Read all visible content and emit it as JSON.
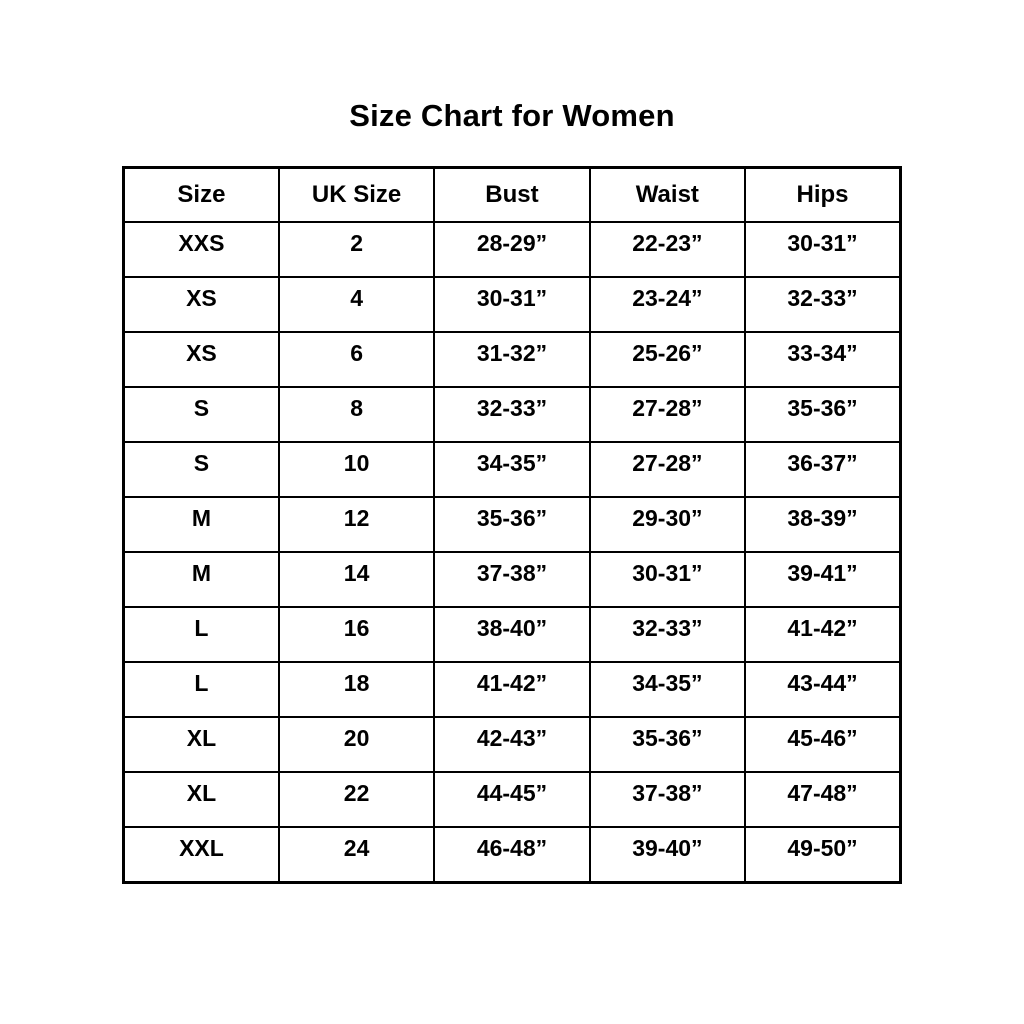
{
  "title": "Size Chart for Women",
  "chart_data": {
    "type": "table",
    "title": "Size Chart for Women",
    "columns": [
      "Size",
      "UK Size",
      "Bust",
      "Waist",
      "Hips"
    ],
    "rows": [
      [
        "XXS",
        "2",
        "28-29”",
        "22-23”",
        "30-31”"
      ],
      [
        "XS",
        "4",
        "30-31”",
        "23-24”",
        "32-33”"
      ],
      [
        "XS",
        "6",
        "31-32”",
        "25-26”",
        "33-34”"
      ],
      [
        "S",
        "8",
        "32-33”",
        "27-28”",
        "35-36”"
      ],
      [
        "S",
        "10",
        "34-35”",
        "27-28”",
        "36-37”"
      ],
      [
        "M",
        "12",
        "35-36”",
        "29-30”",
        "38-39”"
      ],
      [
        "M",
        "14",
        "37-38”",
        "30-31”",
        "39-41”"
      ],
      [
        "L",
        "16",
        "38-40”",
        "32-33”",
        "41-42”"
      ],
      [
        "L",
        "18",
        "41-42”",
        "34-35”",
        "43-44”"
      ],
      [
        "XL",
        "20",
        "42-43”",
        "35-36”",
        "45-46”"
      ],
      [
        "XL",
        "22",
        "44-45”",
        "37-38”",
        "47-48”"
      ],
      [
        "XXL",
        "24",
        "46-48”",
        "39-40”",
        "49-50”"
      ]
    ],
    "text_color": "#000000",
    "border_color": "#000000",
    "background": "#ffffff",
    "layout": {
      "grid": "full-borders",
      "header_row": true,
      "column_count": 5,
      "row_count": 12
    }
  }
}
